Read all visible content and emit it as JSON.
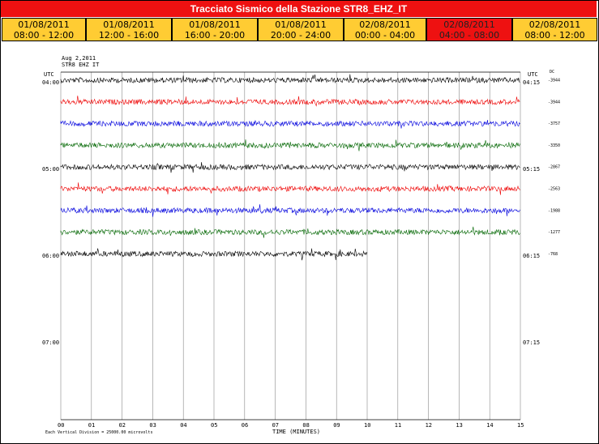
{
  "title": "Tracciato Sismico della Stazione STR8_EHZ_IT",
  "tabs": [
    {
      "date": "01/08/2011",
      "range": "08:00 - 12:00",
      "active": false
    },
    {
      "date": "01/08/2011",
      "range": "12:00 - 16:00",
      "active": false
    },
    {
      "date": "01/08/2011",
      "range": "16:00 - 20:00",
      "active": false
    },
    {
      "date": "01/08/2011",
      "range": "20:00 - 24:00",
      "active": false
    },
    {
      "date": "02/08/2011",
      "range": "00:00 - 04:00",
      "active": false
    },
    {
      "date": "02/08/2011",
      "range": "04:00 - 08:00",
      "active": true
    },
    {
      "date": "02/08/2011",
      "range": "08:00 - 12:00",
      "active": false
    }
  ],
  "plot": {
    "header_date": "Aug 2,2011",
    "header_station": "STR8 EHZ IT",
    "utc_left": "UTC",
    "utc_right": "UTC",
    "dc_label": "DC",
    "left_times": [
      "04:00",
      "05:00",
      "06:00",
      "07:00"
    ],
    "right_times": [
      "04:15",
      "05:15",
      "06:15",
      "07:15"
    ],
    "dc_values": [
      "-3944",
      "-3944",
      "-3757",
      "-3350",
      "-2867",
      "-2563",
      "-1988",
      "-1277",
      "-768"
    ],
    "x_ticks": [
      "00",
      "01",
      "02",
      "03",
      "04",
      "05",
      "06",
      "07",
      "08",
      "09",
      "10",
      "11",
      "12",
      "13",
      "14",
      "15"
    ],
    "x_axis_label": "TIME (MINUTES)",
    "footnote": "Each Vertical Division = 25000.00 microvolts",
    "trace_colors": [
      "#000000",
      "#ee0000",
      "#0000dd",
      "#006600"
    ],
    "trace_count": 9
  }
}
